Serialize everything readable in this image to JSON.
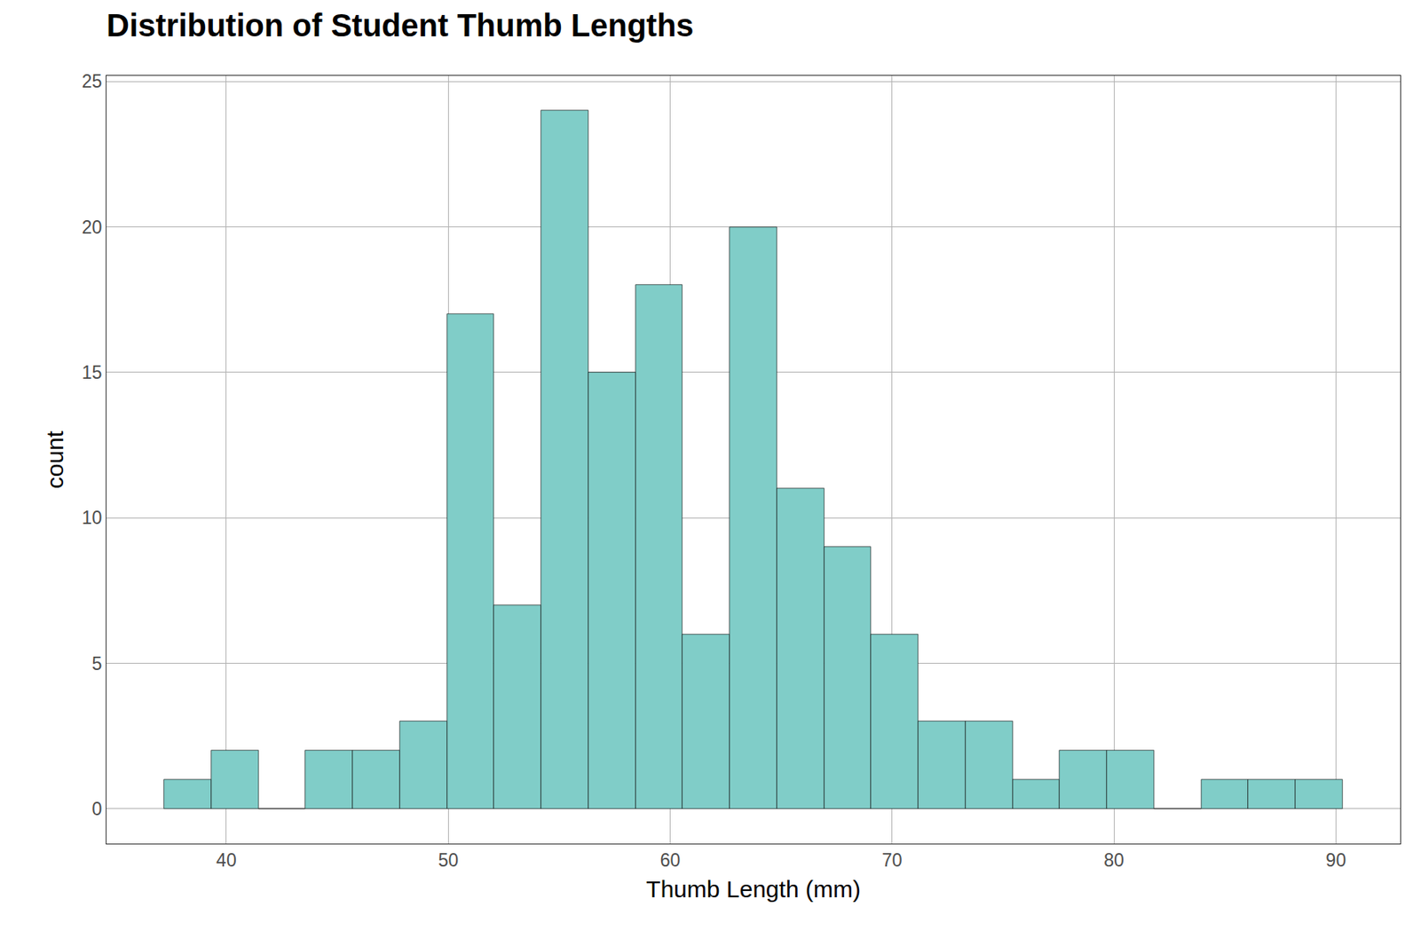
{
  "chart_data": {
    "type": "histogram",
    "title": "Distribution of Student Thumb Lengths",
    "x_label": "Thumb Length (mm)",
    "y_label": "count",
    "bins": [
      37.2,
      39.32,
      41.45,
      43.57,
      45.7,
      47.82,
      49.94,
      52.07,
      54.19,
      56.32,
      58.44,
      60.56,
      62.69,
      64.81,
      66.94,
      69.06,
      71.18,
      73.31,
      75.43,
      77.56,
      79.68,
      81.8,
      83.93,
      86.05,
      88.18,
      90.3
    ],
    "values": [
      1,
      2,
      0,
      2,
      2,
      3,
      17,
      7,
      24,
      15,
      18,
      6,
      20,
      11,
      9,
      6,
      3,
      3,
      1,
      2,
      2,
      0,
      1,
      1,
      1
    ],
    "color": "#80cdc8",
    "xlim": [
      34.6,
      92.9
    ],
    "xticks": [
      40,
      50,
      60,
      70,
      80,
      90
    ],
    "ylim": [
      -1.2,
      25.2
    ],
    "yticks": [
      0,
      5,
      10,
      15,
      20,
      25
    ],
    "grid": true
  }
}
